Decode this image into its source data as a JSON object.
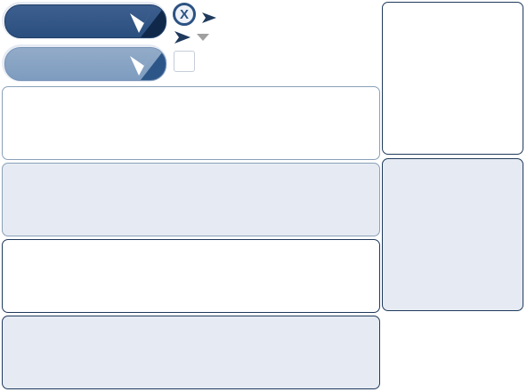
{
  "colors": {
    "primary_dark": "#2a4f7f",
    "primary_light": "#7e9cbf",
    "panel_fill": "#e6ebf3",
    "border_dark": "#1f3a5c",
    "border_light": "#8aa0b8",
    "arrow": "#1f3a5c",
    "caret_gray": "#a0a0a0"
  },
  "controls": {
    "close_glyph": "X"
  },
  "icons": [
    "chevron-down-icon",
    "close-icon",
    "arrow-right-icon",
    "caret-down-icon"
  ]
}
